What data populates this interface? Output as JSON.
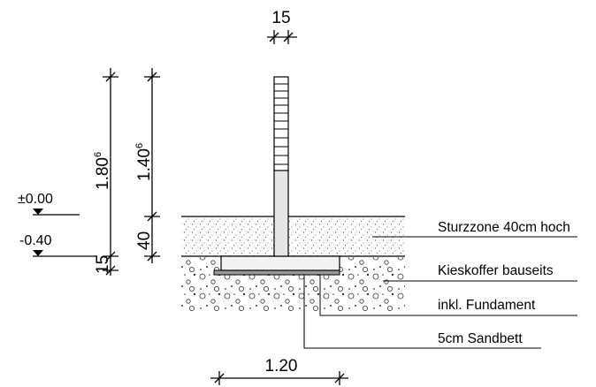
{
  "dimensions": {
    "wall_thickness": "15",
    "total_height": {
      "base": "1.80",
      "sup": "6"
    },
    "free_height": {
      "base": "1.40",
      "sup": "6"
    },
    "impact_zone": "40",
    "foundation_depth": "15",
    "foundation_width": "1.20"
  },
  "levels": {
    "top": "±0.00",
    "bottom": "-0.40"
  },
  "annotations": [
    "Sturzzone 40cm hoch",
    "Kieskoffer bauseits",
    "inkl. Fundament",
    "5cm Sandbett"
  ]
}
